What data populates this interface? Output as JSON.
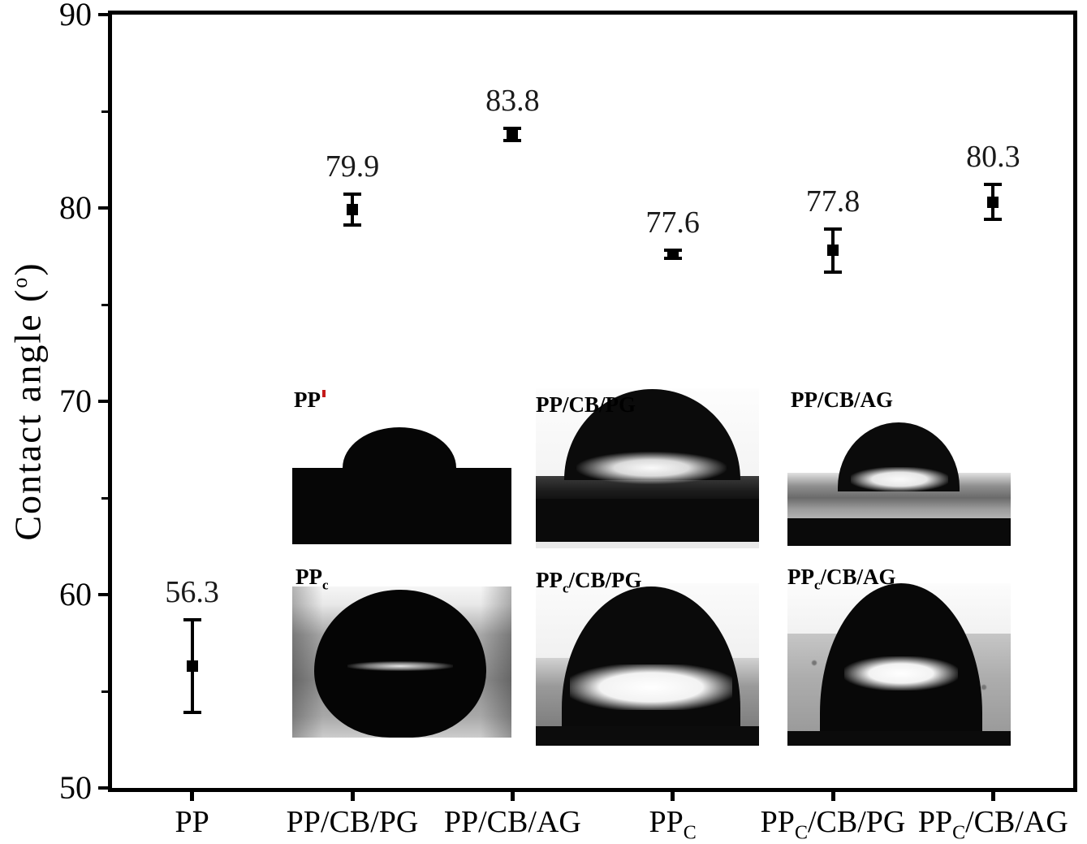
{
  "figure": {
    "background": "#ffffff"
  },
  "chart_data": {
    "type": "scatter",
    "title": "",
    "xlabel": "",
    "ylabel": "Contact angle (°)",
    "ylabel_parts": {
      "pre": "Contact angle (",
      "sup": "o",
      "post": ")"
    },
    "ylim": [
      50,
      90
    ],
    "yticks": [
      50,
      60,
      70,
      80,
      90
    ],
    "yticks_minor": [
      55,
      65,
      75,
      85
    ],
    "grid": false,
    "legend": false,
    "categories": [
      "PP",
      "PP/CB/PG",
      "PP/CB/AG",
      "PPC",
      "PPC/CB/PG",
      "PPC/CB/AG"
    ],
    "categories_rich": [
      {
        "pre": "PP",
        "sub": "",
        "post": ""
      },
      {
        "pre": "PP/CB/PG",
        "sub": "",
        "post": ""
      },
      {
        "pre": "PP/CB/AG",
        "sub": "",
        "post": ""
      },
      {
        "pre": "PP",
        "sub": "C",
        "post": ""
      },
      {
        "pre": "PP",
        "sub": "C",
        "post": "/CB/PG"
      },
      {
        "pre": "PP",
        "sub": "C",
        "post": "/CB/AG"
      }
    ],
    "series": [
      {
        "name": "Contact angle",
        "marker": "filled-square",
        "color": "#000000",
        "values": [
          56.3,
          79.9,
          83.8,
          77.6,
          77.8,
          80.3
        ],
        "errors": [
          2.4,
          0.8,
          0.3,
          0.2,
          1.1,
          0.9
        ],
        "value_labels": [
          "56.3",
          "79.9",
          "83.8",
          "77.6",
          "77.8",
          "80.3"
        ]
      }
    ],
    "insets": [
      {
        "label_plain": "PP",
        "label": {
          "pre": "PP",
          "sub": "",
          "post": ""
        }
      },
      {
        "label_plain": "PP/CB/PG",
        "label": {
          "pre": "PP/CB/PG",
          "sub": "",
          "post": ""
        }
      },
      {
        "label_plain": "PP/CB/AG",
        "label": {
          "pre": "PP/CB/AG",
          "sub": "",
          "post": ""
        }
      },
      {
        "label_plain": "PPc",
        "label": {
          "pre": "PP",
          "sub": "c",
          "post": ""
        }
      },
      {
        "label_plain": "PPc/CB/PG",
        "label": {
          "pre": "PP",
          "sub": "c",
          "post": "/CB/PG"
        }
      },
      {
        "label_plain": "PPc/CB/AG",
        "label": {
          "pre": "PP",
          "sub": "c",
          "post": "/CB/AG"
        }
      }
    ],
    "colors": {
      "marker": "#000000",
      "axis": "#000000",
      "text": "#1a1a1a"
    }
  }
}
